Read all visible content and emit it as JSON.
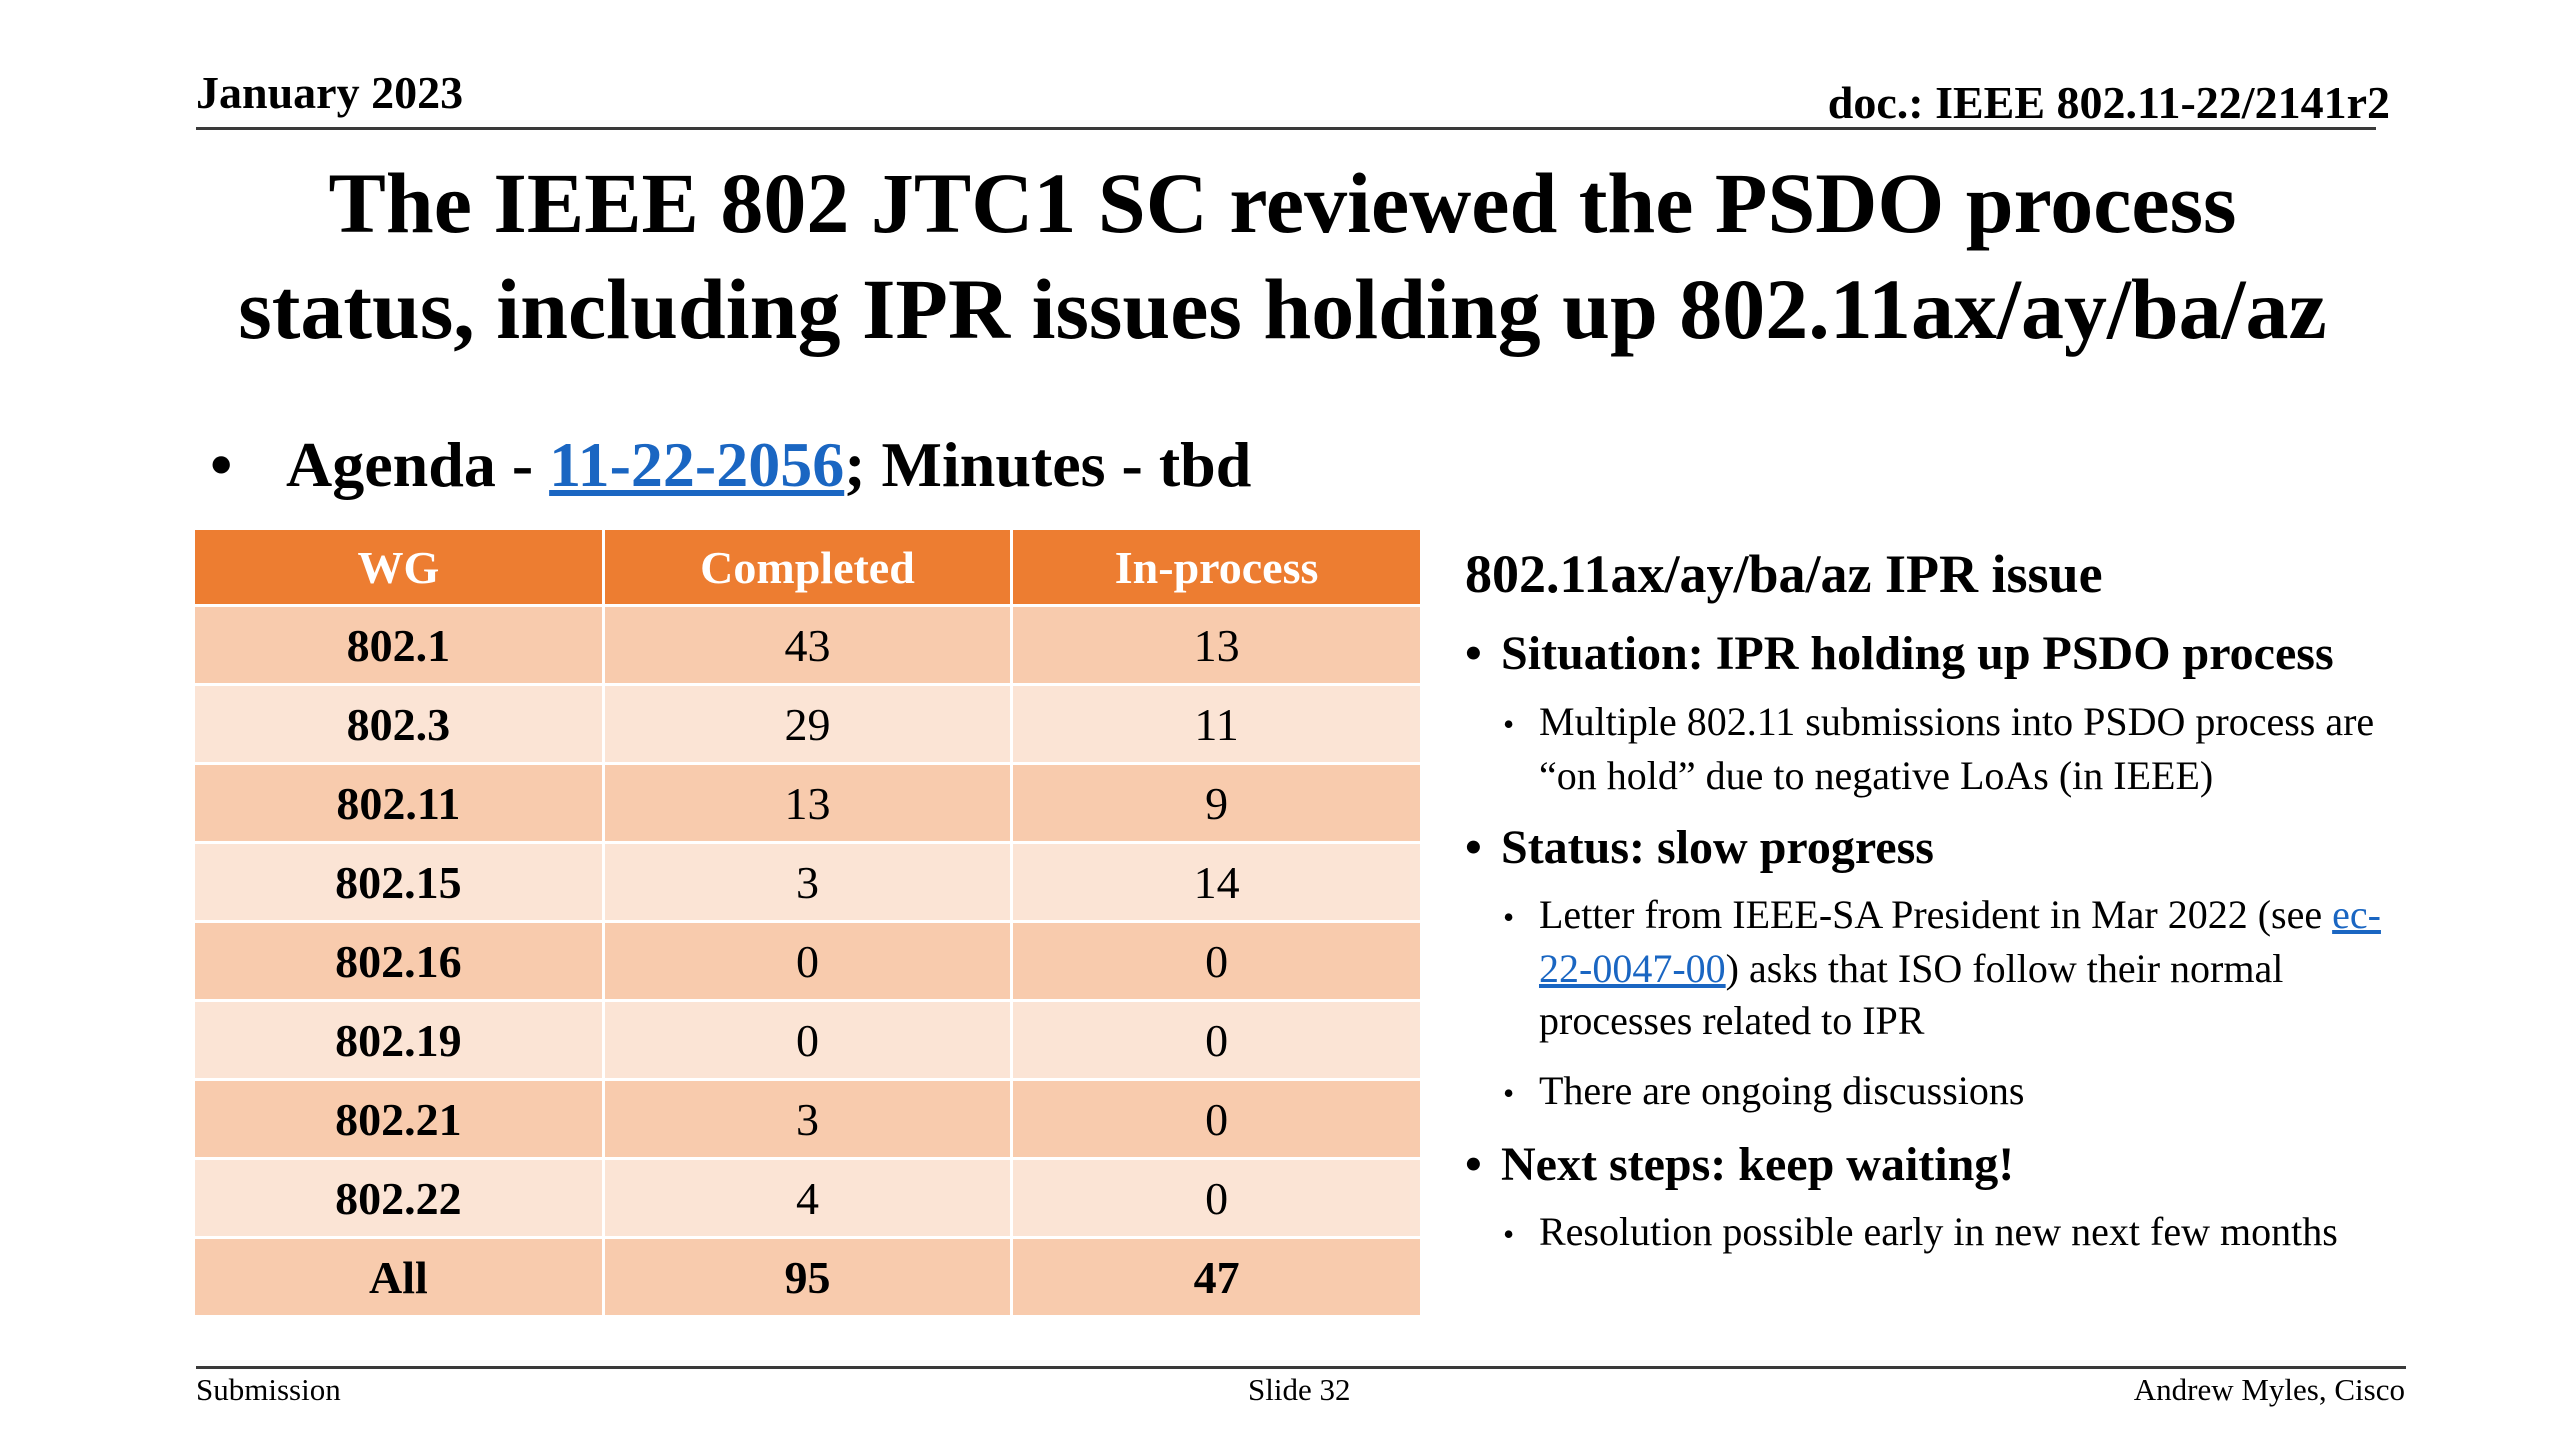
{
  "header": {
    "date": "January 2023",
    "doc": "doc.: IEEE 802.11-22/2141r2"
  },
  "title": {
    "line1": "The IEEE 802 JTC1 SC reviewed the PSDO process",
    "line2": "status, including IPR issues holding up 802.11ax/ay/ba/az"
  },
  "agenda": {
    "bullet": "•",
    "prefix": "Agenda - ",
    "link_text": "11-22-2056",
    "suffix": "; Minutes - tbd"
  },
  "table": {
    "headers": [
      "WG",
      "Completed",
      "In-process"
    ],
    "rows": [
      {
        "wg": "802.1",
        "completed": "43",
        "inprocess": "13"
      },
      {
        "wg": "802.3",
        "completed": "29",
        "inprocess": "11"
      },
      {
        "wg": "802.11",
        "completed": "13",
        "inprocess": "9"
      },
      {
        "wg": "802.15",
        "completed": "3",
        "inprocess": "14"
      },
      {
        "wg": "802.16",
        "completed": "0",
        "inprocess": "0"
      },
      {
        "wg": "802.19",
        "completed": "0",
        "inprocess": "0"
      },
      {
        "wg": "802.21",
        "completed": "3",
        "inprocess": "0"
      },
      {
        "wg": "802.22",
        "completed": "4",
        "inprocess": "0"
      }
    ],
    "total": {
      "wg": "All",
      "completed": "95",
      "inprocess": "47"
    }
  },
  "side": {
    "heading": "802.11ax/ay/ba/az IPR issue",
    "situation": "Situation: IPR holding up PSDO process",
    "situation_detail": "Multiple 802.11 submissions into PSDO process are “on hold” due to negative LoAs (in IEEE)",
    "status": "Status: slow progress",
    "status_detail_pre": "Letter from IEEE-SA President in Mar 2022 (see ",
    "status_detail_link": "ec-22-0047-00",
    "status_detail_post": ") asks that ISO follow their normal processes related to IPR",
    "status_detail2": "There are ongoing discussions",
    "next": "Next steps: keep waiting!",
    "next_detail": "Resolution possible early in new next few months"
  },
  "footer": {
    "left": "Submission",
    "center": "Slide 32",
    "right": "Andrew Myles, Cisco"
  },
  "colors": {
    "header_orange": "#ed7d31",
    "row_dark": "#f8cbad",
    "row_light": "#fbe4d5",
    "link": "#1a66c2"
  }
}
